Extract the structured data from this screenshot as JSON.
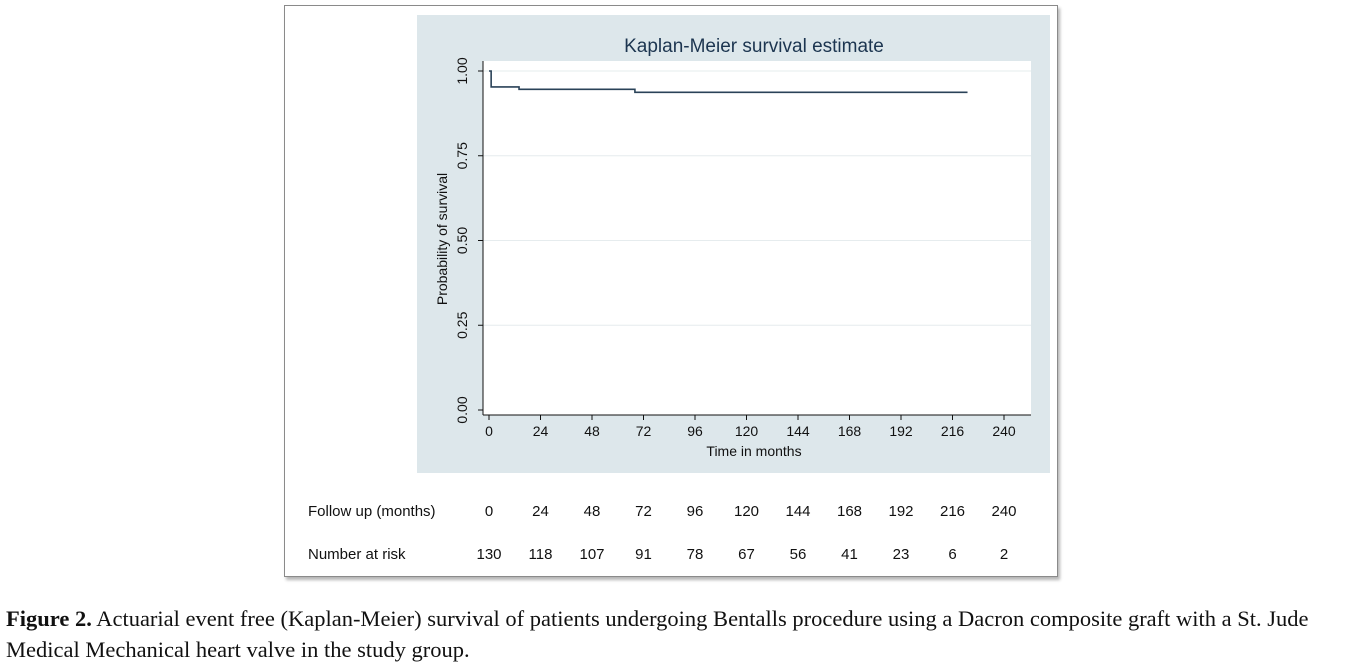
{
  "chart_data": {
    "type": "line",
    "title": "Kaplan-Meier survival estimate",
    "xlabel": "Time in months",
    "ylabel": "Probability of survival",
    "xlim": [
      0,
      240
    ],
    "ylim": [
      0,
      1
    ],
    "x_ticks": [
      "0",
      "24",
      "48",
      "72",
      "96",
      "120",
      "144",
      "168",
      "192",
      "216",
      "240"
    ],
    "y_ticks": [
      "0.00",
      "0.25",
      "0.50",
      "0.75",
      "1.00"
    ],
    "grid": true,
    "series": [
      {
        "color": "#2a4258",
        "x": [
          0,
          1,
          14,
          68,
          223
        ],
        "y": [
          1.0,
          0.953,
          0.946,
          0.937,
          0.937
        ]
      }
    ]
  },
  "risk_table": {
    "row1_label": "Follow up (months)",
    "row1_values": [
      "0",
      "24",
      "48",
      "72",
      "96",
      "120",
      "144",
      "168",
      "192",
      "216",
      "240"
    ],
    "row2_label": "Number at risk",
    "row2_values": [
      "130",
      "118",
      "107",
      "91",
      "78",
      "67",
      "56",
      "41",
      "23",
      "6",
      "2"
    ]
  },
  "caption": {
    "label": "Figure 2.",
    "text": " Actuarial event free (Kaplan-Meier) survival of patients undergoing Bentalls procedure using a Dacron composite graft with a St. Jude Medical Mechanical heart valve in the study group."
  }
}
